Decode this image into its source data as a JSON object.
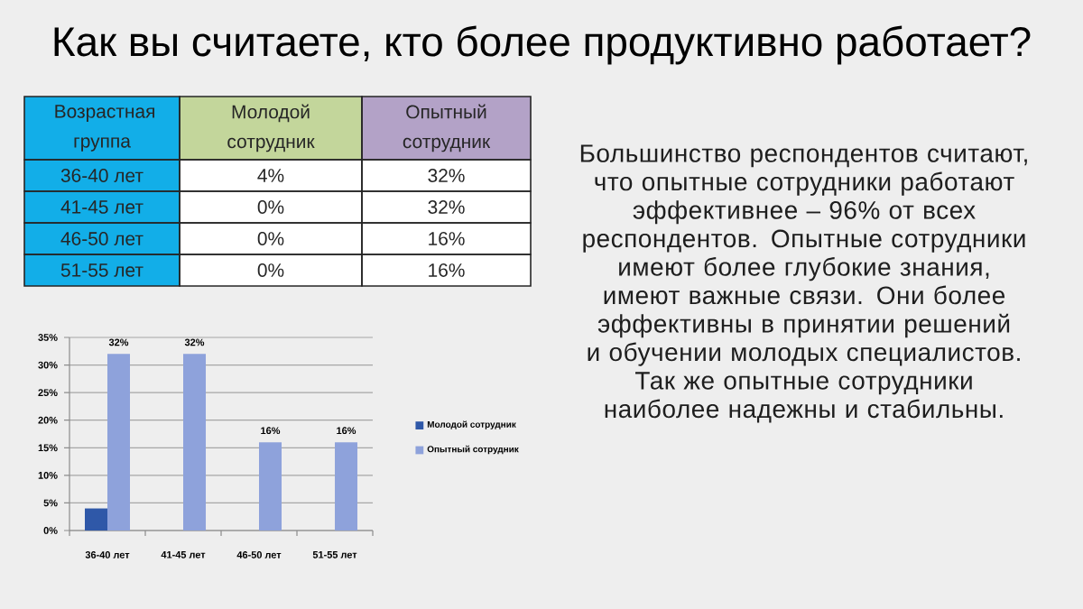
{
  "chart_data": [
    {
      "type": "other",
      "title": "Как вы считаете, кто более продуктивно работает?",
      "annotations": [
        "Возрастная группа",
        "Молодой сотрудник",
        "Опытный сотрудник",
        "36-40 лет",
        "4%",
        "32%",
        "41-45 лет",
        "0%",
        "32%",
        "46-50 лет",
        "0%",
        "16%",
        "51-55 лет",
        "0%",
        "16%",
        "Большинство респондентов считают, что опытные сотрудники работают эффективнее – 96% от всех респондентов. Опытные сотрудники имеют более глубокие знания, имеют важные связи. Они более эффективны в принятии решений и обучении молодых специалистов. Так же опытные сотрудники наиболее надежны и стабильны."
      ]
    },
    {
      "type": "bar",
      "categories": [
        "36-40 лет",
        "41-45 лет",
        "46-50 лет",
        "51-55 лет"
      ],
      "series": [
        {
          "name": "Молодой сотрудник",
          "color": "#2f58a8",
          "values": [
            4,
            0,
            0,
            0
          ]
        },
        {
          "name": "Опытный сотрудник",
          "color": "#8ea2db",
          "values": [
            32,
            32,
            16,
            16
          ],
          "value_labels": [
            "32%",
            "32%",
            "16%",
            "16%"
          ]
        }
      ],
      "ylim": [
        0,
        35
      ],
      "yticks": [
        {
          "value": 0,
          "label": "0%"
        },
        {
          "value": 5,
          "label": "5%"
        },
        {
          "value": 10,
          "label": "10%"
        },
        {
          "value": 15,
          "label": "15%"
        },
        {
          "value": 20,
          "label": "20%"
        },
        {
          "value": 25,
          "label": "25%"
        },
        {
          "value": 30,
          "label": "30%"
        },
        {
          "value": 35,
          "label": "35%"
        }
      ],
      "grid": "y",
      "legend": "right"
    }
  ]
}
